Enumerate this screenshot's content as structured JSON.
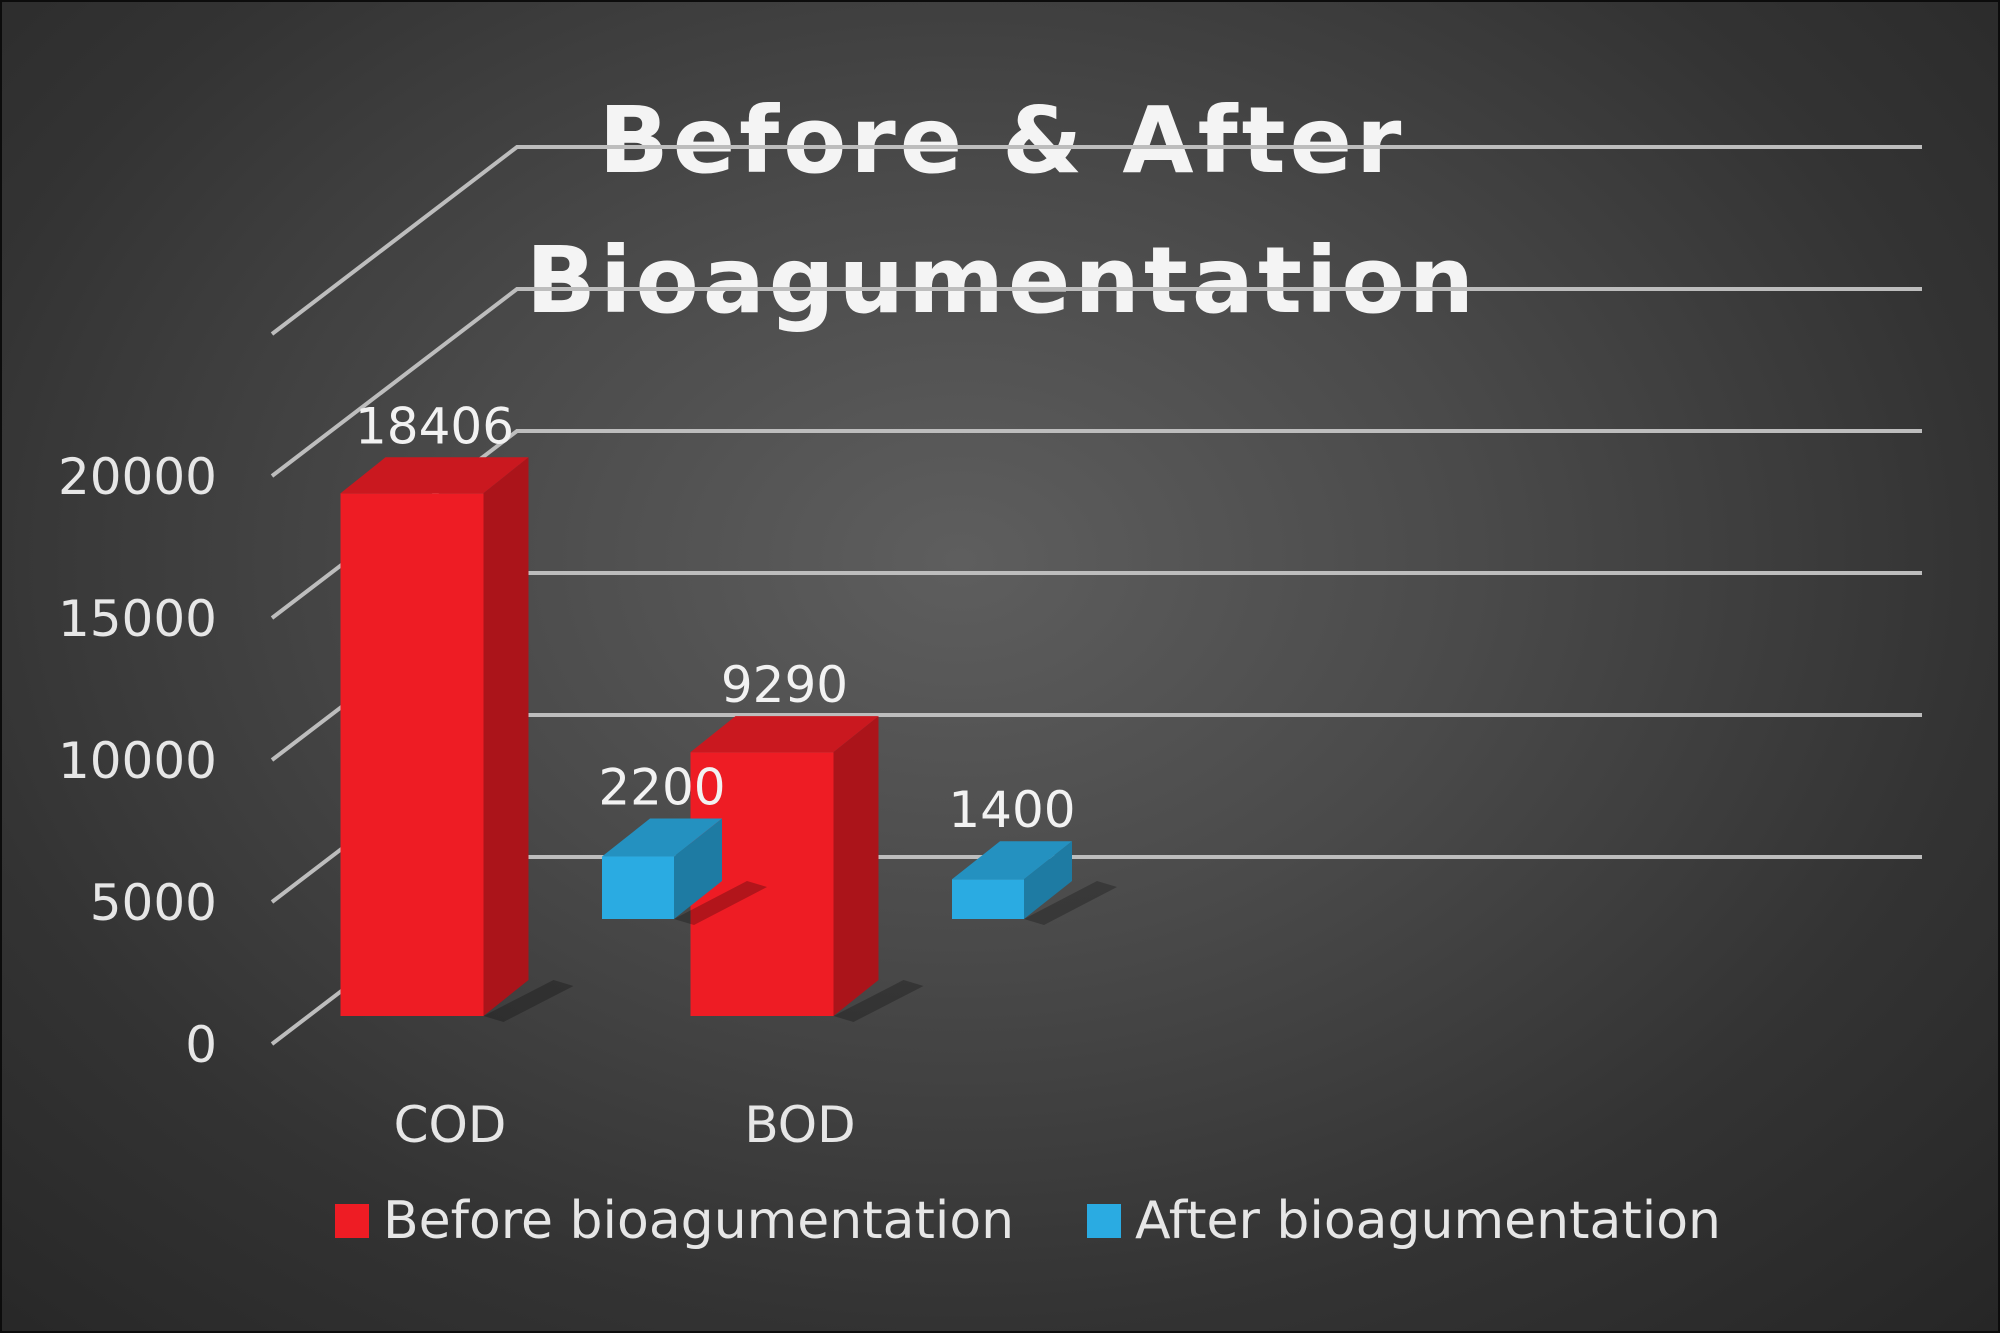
{
  "chart_data": {
    "type": "bar",
    "title": "Before & After Bioagumentation",
    "title_lines": [
      "Before & After",
      "Bioagumentation"
    ],
    "categories": [
      "COD",
      "BOD"
    ],
    "series": [
      {
        "name": "Before bioagumentation",
        "values": [
          18406,
          9290
        ],
        "color": "#ee1c24"
      },
      {
        "name": "After bioagumentation",
        "values": [
          2200,
          1400
        ],
        "color": "#2aabe2"
      }
    ],
    "y_ticks": [
      "0",
      "5000",
      "10000",
      "15000",
      "20000"
    ],
    "ylim": [
      0,
      25000
    ],
    "xlabel": "",
    "ylabel": "",
    "grid": true,
    "legend_position": "bottom",
    "style": "3d-column"
  }
}
